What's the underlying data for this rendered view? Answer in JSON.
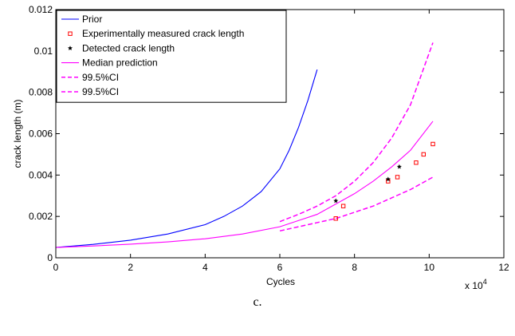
{
  "caption": "c.",
  "chart_data": {
    "type": "line",
    "xlabel": "Cycles",
    "ylabel": "crack length (m)",
    "x_multiplier_label": "x 10",
    "x_multiplier_exponent": "4",
    "xlim": [
      0,
      120000
    ],
    "ylim": [
      0,
      0.012
    ],
    "x_ticks": [
      0,
      20000,
      40000,
      60000,
      80000,
      100000,
      120000
    ],
    "x_tick_labels": [
      "0",
      "2",
      "4",
      "6",
      "8",
      "10",
      "12"
    ],
    "y_ticks": [
      0,
      0.002,
      0.004,
      0.006,
      0.008,
      0.01,
      0.012
    ],
    "y_tick_labels": [
      "0",
      "0.002",
      "0.004",
      "0.006",
      "0.008",
      "0.01",
      "0.012"
    ],
    "grid": false,
    "legend_position": "top-left",
    "series": [
      {
        "name": "Prior",
        "style": "line",
        "color": "#0000ff",
        "x": [
          0,
          10000,
          20000,
          30000,
          40000,
          45000,
          50000,
          55000,
          60000,
          62500,
          65000,
          67500,
          70000
        ],
        "y": [
          0.0005,
          0.00065,
          0.00085,
          0.00115,
          0.0016,
          0.002,
          0.0025,
          0.0032,
          0.0043,
          0.0052,
          0.0063,
          0.0076,
          0.0091
        ]
      },
      {
        "name": "Experimentally measured crack length",
        "style": "marker",
        "marker": "square",
        "color": "#ff0000",
        "x": [
          75000,
          77000,
          89000,
          91500,
          96500,
          98500,
          101000
        ],
        "y": [
          0.0019,
          0.0025,
          0.0037,
          0.0039,
          0.0046,
          0.005,
          0.0055
        ]
      },
      {
        "name": "Detected crack length",
        "style": "marker",
        "marker": "star",
        "color": "#000000",
        "x": [
          75000,
          89000,
          92000
        ],
        "y": [
          0.00275,
          0.0038,
          0.0044
        ]
      },
      {
        "name": "Median prediction",
        "style": "line",
        "color": "#ff00ff",
        "x": [
          0,
          10000,
          20000,
          30000,
          40000,
          50000,
          60000,
          70000,
          75000,
          80000,
          85000,
          90000,
          95000,
          101000
        ],
        "y": [
          0.0005,
          0.00057,
          0.00066,
          0.00077,
          0.00092,
          0.00115,
          0.0015,
          0.0021,
          0.0026,
          0.0031,
          0.0037,
          0.0044,
          0.0052,
          0.0066
        ]
      },
      {
        "name": "99.5%CI",
        "style": "dashed",
        "color": "#ff00ff",
        "x": [
          60000,
          65000,
          70000,
          75000,
          80000,
          85000,
          90000,
          95000,
          101000
        ],
        "y": [
          0.00175,
          0.0021,
          0.0025,
          0.003,
          0.0037,
          0.0046,
          0.0058,
          0.0074,
          0.0104
        ]
      },
      {
        "name": "99.5%CI",
        "style": "dashed",
        "color": "#ff00ff",
        "x": [
          60000,
          65000,
          70000,
          75000,
          80000,
          85000,
          90000,
          95000,
          101000
        ],
        "y": [
          0.0013,
          0.0015,
          0.0017,
          0.0019,
          0.0022,
          0.0025,
          0.0029,
          0.0033,
          0.0039
        ]
      }
    ]
  }
}
